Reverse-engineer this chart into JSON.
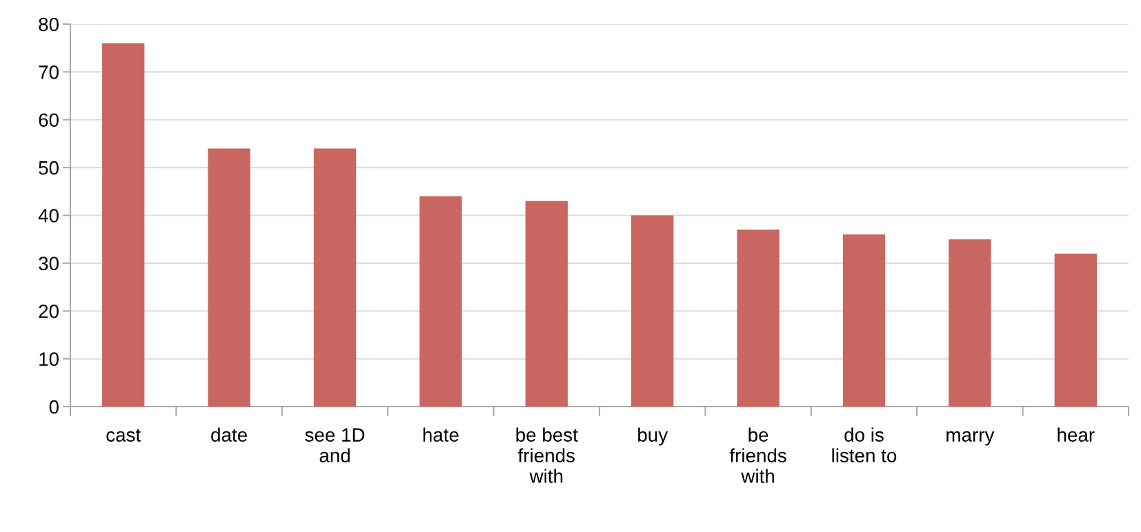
{
  "chart_data": {
    "type": "bar",
    "categories": [
      "cast",
      "date",
      "see 1D\nand",
      "hate",
      "be best\nfriends\nwith",
      "buy",
      "be\nfriends\nwith",
      "do is\nlisten to",
      "marry",
      "hear"
    ],
    "values": [
      76,
      54,
      54,
      44,
      43,
      40,
      37,
      36,
      35,
      32
    ],
    "color": "#c96661",
    "ylim": [
      0,
      80
    ],
    "yticks": [
      0,
      10,
      20,
      30,
      40,
      50,
      60,
      70,
      80
    ],
    "grid": "y",
    "legend": false
  }
}
